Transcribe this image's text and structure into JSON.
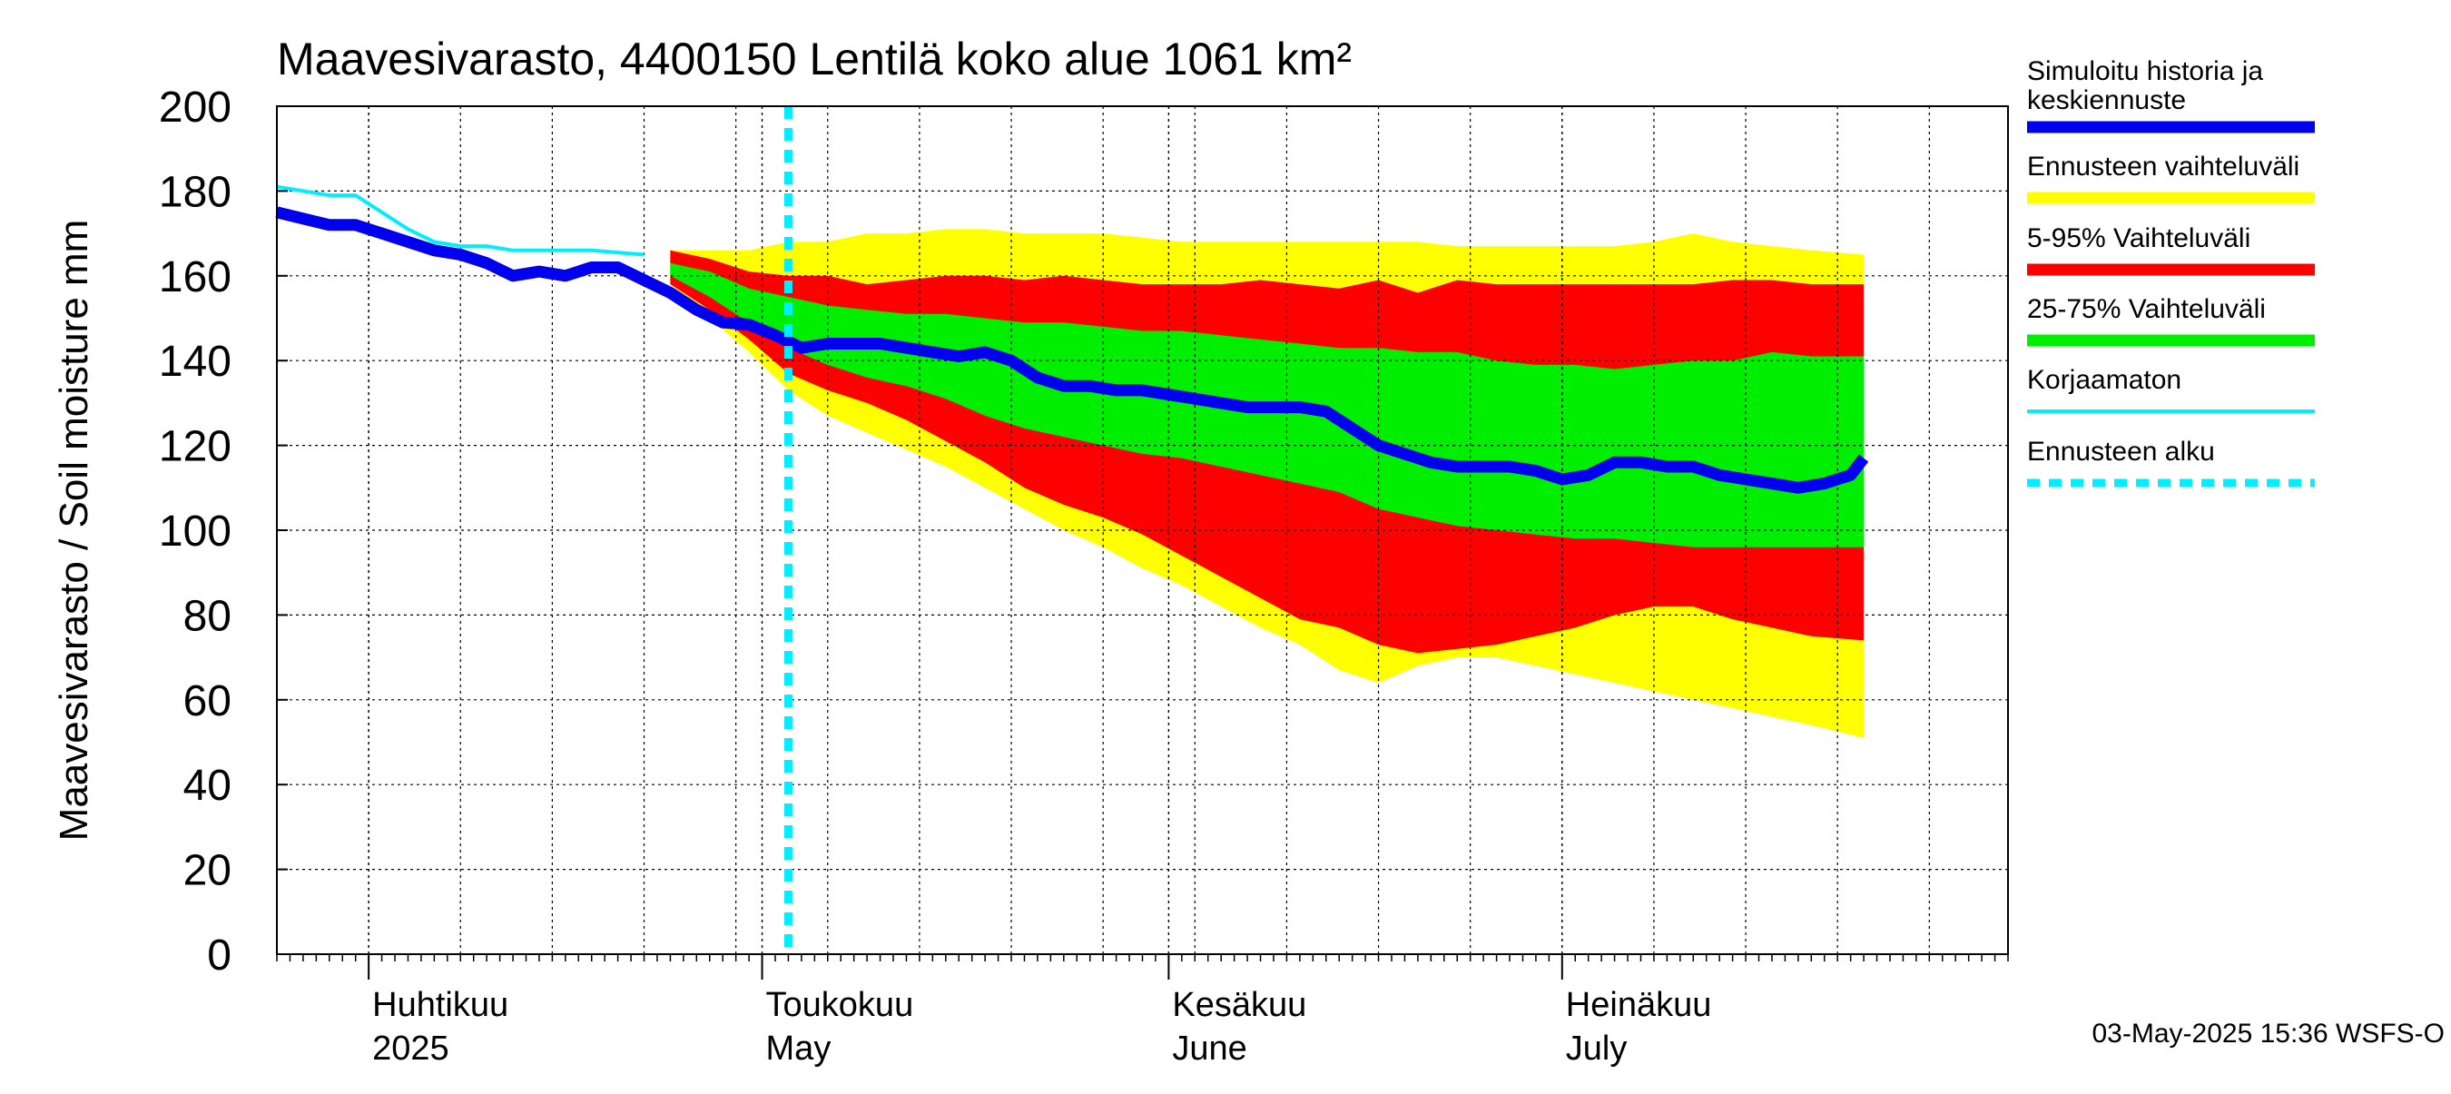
{
  "chart_data": {
    "type": "area",
    "title": "Maavesivarasto, 4400150 Lentilä koko alue 1061 km²",
    "ylabel": "Maavesivarasto / Soil moisture   mm",
    "ylim": [
      0,
      200
    ],
    "yticks": [
      0,
      20,
      40,
      60,
      80,
      100,
      120,
      140,
      160,
      180,
      200
    ],
    "x_start": "2025-03-25",
    "x_end": "2025-08-04",
    "forecast_start": "2025-05-03",
    "month_labels": [
      {
        "date": "2025-04-01",
        "fi": "Huhtikuu",
        "en": "2025"
      },
      {
        "date": "2025-05-01",
        "fi": "Toukokuu",
        "en": "May"
      },
      {
        "date": "2025-06-01",
        "fi": "Kesäkuu",
        "en": "June"
      },
      {
        "date": "2025-07-01",
        "fi": "Heinäkuu",
        "en": "July"
      }
    ],
    "timestamp": "03-May-2025 15:36 WSFS-O",
    "colors": {
      "history": "#0000ee",
      "yellow": "#ffff00",
      "red": "#ff0000",
      "green": "#00ee00",
      "uncorrected": "#00eeff",
      "forecast_start": "#00eeff"
    },
    "legend": [
      {
        "label": "Simuloitu historia ja keskiennuste",
        "lines": [
          "Simuloitu historia ja",
          "keskiennuste"
        ],
        "key": "history"
      },
      {
        "label": "Ennusteen vaihteluväli",
        "lines": [
          "Ennusteen vaihteluväli"
        ],
        "key": "yellow"
      },
      {
        "label": "5-95% Vaihteluväli",
        "lines": [
          "5-95% Vaihteluväli"
        ],
        "key": "red"
      },
      {
        "label": "25-75% Vaihteluväli",
        "lines": [
          "25-75% Vaihteluväli"
        ],
        "key": "green"
      },
      {
        "label": "Korjaamaton",
        "lines": [
          "Korjaamaton"
        ],
        "key": "uncorrected"
      },
      {
        "label": "Ennusteen alku",
        "lines": [
          "Ennusteen alku"
        ],
        "key": "forecast_start"
      }
    ],
    "series": [
      {
        "name": "Simuloitu historia ja keskiennuste",
        "x": [
          0,
          2,
          4,
          6,
          8,
          10,
          12,
          14,
          16,
          18,
          20,
          22,
          24,
          26,
          28,
          30,
          32,
          34,
          36,
          38,
          40,
          42,
          44,
          46,
          48,
          50,
          52,
          54,
          56,
          58,
          60,
          62,
          64,
          66,
          68,
          70,
          72,
          74,
          76,
          78,
          80,
          82,
          84,
          86,
          88,
          90,
          92,
          94,
          96,
          98,
          100,
          102,
          104,
          106,
          108,
          110,
          112,
          114,
          116,
          118,
          120,
          121
        ],
        "values": [
          175,
          173.5,
          172,
          172,
          170,
          168,
          166,
          165,
          163,
          160,
          161,
          160,
          162,
          162,
          159,
          156,
          152,
          149,
          148.5,
          146,
          143,
          144,
          144,
          144,
          143,
          142,
          141,
          142,
          140,
          136,
          134,
          134,
          133,
          133,
          132,
          131,
          130,
          129,
          129,
          129,
          128,
          124,
          120,
          118,
          116,
          115,
          115,
          115,
          114,
          112,
          113,
          116,
          116,
          115,
          115,
          113,
          112,
          111,
          110,
          111,
          113,
          117
        ]
      },
      {
        "name": "Korjaamaton",
        "x": [
          0,
          2,
          4,
          6,
          8,
          10,
          12,
          14,
          16,
          18,
          20,
          22,
          24,
          28
        ],
        "values": [
          181,
          180,
          179,
          179,
          175,
          171,
          168,
          167,
          167,
          166,
          166,
          166,
          166,
          165
        ]
      },
      {
        "name": "Ennusteen vaihteluväli",
        "x": [
          30,
          33,
          36,
          39,
          42,
          45,
          48,
          51,
          54,
          57,
          60,
          63,
          66,
          69,
          72,
          75,
          78,
          81,
          84,
          87,
          90,
          93,
          96,
          99,
          102,
          105,
          108,
          111,
          114,
          117,
          121
        ],
        "upper": [
          166,
          166,
          166,
          168,
          168,
          170,
          170,
          171,
          171,
          170,
          170,
          170,
          169,
          168,
          168,
          168,
          168,
          168,
          168,
          168,
          167,
          167,
          167,
          167,
          167,
          168,
          170,
          168,
          167,
          166,
          165
        ],
        "lower": [
          158,
          150,
          142,
          133,
          127,
          123,
          119,
          115,
          110,
          105,
          100,
          96,
          91,
          87,
          82,
          77,
          73,
          67,
          64,
          68,
          70,
          70,
          68,
          66,
          64,
          62,
          60,
          58,
          56,
          54,
          51
        ]
      },
      {
        "name": "5-95% Vaihteluväli",
        "x": [
          30,
          33,
          36,
          39,
          42,
          45,
          48,
          51,
          54,
          57,
          60,
          63,
          66,
          69,
          72,
          75,
          78,
          81,
          84,
          87,
          90,
          93,
          96,
          99,
          102,
          105,
          108,
          111,
          114,
          117,
          121
        ],
        "upper": [
          166,
          164,
          161,
          160,
          160,
          158,
          159,
          160,
          160,
          159,
          160,
          159,
          158,
          158,
          158,
          159,
          158,
          157,
          159,
          156,
          159,
          158,
          158,
          158,
          158,
          158,
          158,
          159,
          159,
          158,
          158
        ],
        "lower": [
          158,
          152,
          145,
          137,
          133,
          130,
          126,
          121,
          116,
          110,
          106,
          103,
          99,
          94,
          89,
          84,
          79,
          77,
          73,
          71,
          72,
          73,
          75,
          77,
          80,
          82,
          82,
          79,
          77,
          75,
          74
        ]
      },
      {
        "name": "25-75% Vaihteluväli",
        "x": [
          30,
          33,
          36,
          39,
          42,
          45,
          48,
          51,
          54,
          57,
          60,
          63,
          66,
          69,
          72,
          75,
          78,
          81,
          84,
          87,
          90,
          93,
          96,
          99,
          102,
          105,
          108,
          111,
          114,
          117,
          121
        ],
        "upper": [
          163,
          161,
          157,
          155,
          153,
          152,
          151,
          151,
          150,
          149,
          149,
          148,
          147,
          147,
          146,
          145,
          144,
          143,
          143,
          142,
          142,
          140,
          139,
          139,
          138,
          139,
          140,
          140,
          142,
          141,
          141
        ],
        "lower": [
          160,
          155,
          149,
          143,
          139,
          136,
          134,
          131,
          127,
          124,
          122,
          120,
          118,
          117,
          115,
          113,
          111,
          109,
          105,
          103,
          101,
          100,
          99,
          98,
          98,
          97,
          96,
          96,
          96,
          96,
          96
        ]
      }
    ]
  }
}
